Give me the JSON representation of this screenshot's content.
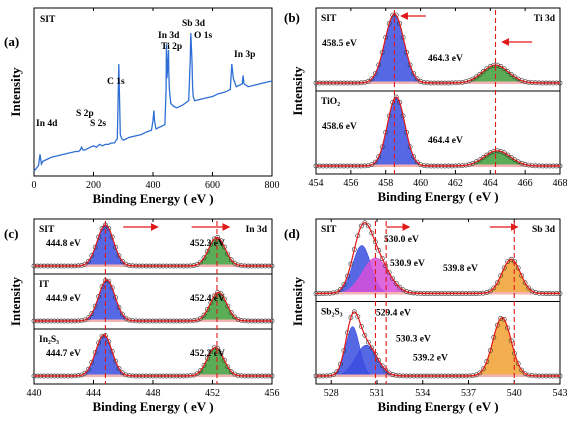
{
  "chart_data": [
    {
      "id": "a",
      "type": "line",
      "panel_label": "(a)",
      "sample_label": "SIT",
      "xlabel": "Binding Energy ( eV )",
      "ylabel": "Intensity",
      "xlim": [
        0,
        800
      ],
      "xticks": [
        0,
        200,
        400,
        600,
        800
      ],
      "line_color": "#2e6fd6",
      "x": [
        0,
        15,
        20,
        25,
        30,
        40,
        60,
        80,
        100,
        120,
        140,
        150,
        155,
        160,
        165,
        170,
        180,
        190,
        200,
        210,
        220,
        230,
        240,
        250,
        260,
        270,
        280,
        282,
        285,
        288,
        290,
        295,
        300,
        320,
        340,
        360,
        380,
        395,
        400,
        403,
        405,
        410,
        420,
        440,
        444,
        445,
        447,
        452,
        453,
        455,
        460,
        470,
        480,
        500,
        520,
        525,
        527,
        528,
        530,
        531,
        533,
        535,
        540,
        560,
        580,
        600,
        620,
        640,
        660,
        665,
        670,
        680,
        700,
        703,
        706,
        720,
        740,
        760,
        780,
        800
      ],
      "y": [
        2,
        6,
        14,
        7,
        9,
        10,
        12,
        13,
        14,
        15,
        16,
        16,
        17,
        19,
        17,
        17,
        18,
        19,
        20,
        19,
        21,
        20,
        21,
        21,
        22,
        22,
        25,
        45,
        78,
        48,
        28,
        25,
        24,
        26,
        27,
        28,
        30,
        31,
        38,
        45,
        38,
        32,
        33,
        35,
        60,
        92,
        68,
        88,
        72,
        60,
        50,
        48,
        47,
        49,
        52,
        80,
        100,
        95,
        85,
        80,
        62,
        55,
        52,
        53,
        54,
        55,
        57,
        58,
        60,
        78,
        68,
        62,
        64,
        70,
        64,
        62,
        63,
        64,
        65,
        66
      ],
      "peak_labels": [
        "In 4d",
        "S 2p",
        "S 2s",
        "C 1s",
        "In 3d",
        "Ti 2p",
        "Sb 3d",
        "O 1s",
        "In 3p"
      ]
    },
    {
      "id": "b",
      "type": "line",
      "panel_label": "(b)",
      "region_label": "Ti 3d",
      "xlabel": "Binding Energy ( eV )",
      "ylabel": "Intensity",
      "xlim": [
        454,
        468
      ],
      "xticks": [
        454,
        456,
        458,
        460,
        462,
        464,
        466,
        468
      ],
      "dashed_lines": [
        458.5,
        464.3
      ],
      "subpanels": [
        {
          "sample": "SIT",
          "peaks": [
            {
              "center": 458.5,
              "label": "458.5 eV",
              "color": "#3a4de0",
              "amplitude": 1.0,
              "sigma": 0.55
            },
            {
              "center": 464.3,
              "label": "464.3 eV",
              "color": "#3e9e3a",
              "amplitude": 0.26,
              "sigma": 0.75
            }
          ]
        },
        {
          "sample": "TiO₂",
          "peaks": [
            {
              "center": 458.6,
              "label": "458.6 eV",
              "color": "#3a4de0",
              "amplitude": 1.0,
              "sigma": 0.5
            },
            {
              "center": 464.4,
              "label": "464.4 eV",
              "color": "#3e9e3a",
              "amplitude": 0.22,
              "sigma": 0.75
            }
          ]
        }
      ]
    },
    {
      "id": "c",
      "type": "line",
      "panel_label": "(c)",
      "region_label": "In 3d",
      "xlabel": "Binding Energy ( eV )",
      "ylabel": "Intensity",
      "xlim": [
        440,
        456
      ],
      "xticks": [
        440,
        444,
        448,
        452,
        456
      ],
      "dashed_lines": [
        444.8,
        452.3
      ],
      "subpanels": [
        {
          "sample": "SIT",
          "peaks": [
            {
              "center": 444.8,
              "label": "444.8 eV",
              "color": "#3a4de0",
              "amplitude": 1.0,
              "sigma": 0.55
            },
            {
              "center": 452.3,
              "label": "452.3 eV",
              "color": "#3e9e3a",
              "amplitude": 0.7,
              "sigma": 0.55
            }
          ]
        },
        {
          "sample": "IT",
          "peaks": [
            {
              "center": 444.9,
              "label": "444.9 eV",
              "color": "#3a4de0",
              "amplitude": 1.0,
              "sigma": 0.55
            },
            {
              "center": 452.4,
              "label": "452.4 eV",
              "color": "#3e9e3a",
              "amplitude": 0.7,
              "sigma": 0.55
            }
          ]
        },
        {
          "sample": "In₂S₃",
          "peaks": [
            {
              "center": 444.7,
              "label": "444.7 eV",
              "color": "#3a4de0",
              "amplitude": 1.0,
              "sigma": 0.55
            },
            {
              "center": 452.2,
              "label": "452.2 eV",
              "color": "#3e9e3a",
              "amplitude": 0.7,
              "sigma": 0.55
            }
          ]
        }
      ]
    },
    {
      "id": "d",
      "type": "line",
      "panel_label": "(d)",
      "region_label": "Sb 3d",
      "xlabel": "Binding Energy ( eV )",
      "ylabel": "Intensity",
      "xlim": [
        527,
        543
      ],
      "xticks": [
        528,
        531,
        534,
        537,
        540,
        543
      ],
      "dashed_lines": [
        530.9,
        531.6,
        540.0
      ],
      "subpanels": [
        {
          "sample": "SIT",
          "peaks": [
            {
              "center": 530.0,
              "label": "530.0 eV",
              "color": "#3a4de0",
              "amplitude": 0.7,
              "sigma": 0.6
            },
            {
              "center": 530.9,
              "label": "530.9 eV",
              "color": "#d84fd8",
              "amplitude": 0.52,
              "sigma": 0.85
            },
            {
              "center": 539.8,
              "label": "539.8 eV",
              "color": "#f0a030",
              "amplitude": 0.5,
              "sigma": 0.6
            }
          ]
        },
        {
          "sample": "Sb₂S₃",
          "peaks": [
            {
              "center": 529.4,
              "label": "529.4 eV",
              "color": "#3a4de0",
              "amplitude": 0.72,
              "sigma": 0.45
            },
            {
              "center": 530.3,
              "label": "530.3 eV",
              "color": "#3a4de0",
              "amplitude": 0.45,
              "sigma": 0.7
            },
            {
              "center": 539.2,
              "label": "539.2 eV",
              "color": "#f0a030",
              "amplitude": 0.85,
              "sigma": 0.6
            }
          ]
        }
      ]
    }
  ],
  "colors": {
    "envelope": "#e01818",
    "data_marker": "#333333",
    "dashed": "#e01818",
    "arrow": "#e01818",
    "background_fill": "#f4b2b2"
  }
}
